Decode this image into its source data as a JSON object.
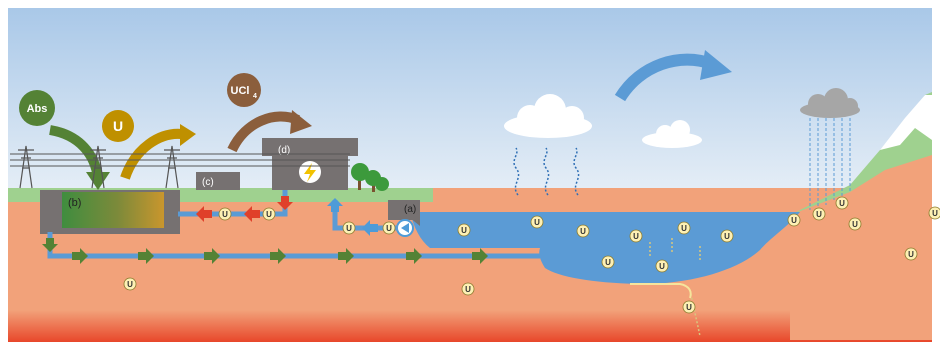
{
  "labels": {
    "abs": "Abs",
    "u": "U",
    "ucl_base": "UCl",
    "ucl_sub": "4",
    "a": "(a)",
    "b": "(b)",
    "c": "(c)",
    "d": "(d)",
    "uranium": "U"
  },
  "colors": {
    "sky_top": "#a9c8e8",
    "sky_bottom": "#dfeaf4",
    "ground": "#f2a27a",
    "grass": "#9fd18f",
    "water": "#5b9bd5",
    "pipe": "#5b9bd5",
    "building": "#767171",
    "mantle": "#e8472a",
    "abs_green": "#548235",
    "u_gold": "#bf9000",
    "ucl_brown": "#8b5e3c",
    "arrow_green": "#548235",
    "arrow_red": "#e0402a",
    "arrow_blue": "#4e9bd8",
    "cloud": "#ffffff",
    "rain_cloud": "#a6a6a6",
    "u_marker": "#fdf0b4"
  }
}
